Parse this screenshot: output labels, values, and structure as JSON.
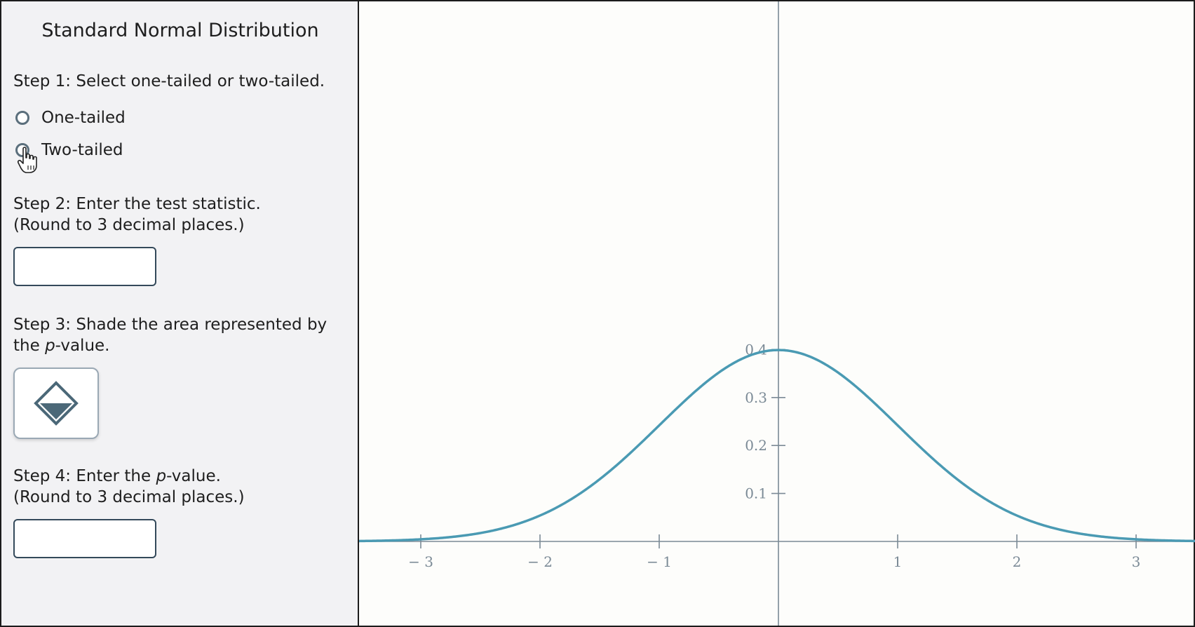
{
  "panel": {
    "title": "Standard Normal Distribution",
    "step1": "Step 1: Select one-tailed or two-tailed.",
    "radio_one": "One-tailed",
    "radio_two": "Two-tailed",
    "step2_line1": "Step 2: Enter the test statistic.",
    "step2_line2": "(Round to 3 decimal places.)",
    "test_statistic_value": "",
    "step3_line1": "Step 3: Shade the area represented by",
    "step3_prefix": "the ",
    "step3_italic": "p",
    "step3_suffix": "-value.",
    "step4_prefix": "Step 4: Enter the ",
    "step4_italic": "p",
    "step4_suffix": "-value.",
    "step4_line2": "(Round to 3 decimal places.)",
    "p_value_value": ""
  },
  "icons": {
    "shade_tool": "paint-bucket-icon",
    "cursor": "hand-pointer-cursor-icon"
  },
  "colors": {
    "curve": "#4a9ab3",
    "axis": "#7b8a96",
    "icon": "#4b6878"
  },
  "chart_data": {
    "type": "line",
    "function": "standard normal pdf",
    "xlim": [
      -3.5,
      3.5
    ],
    "ylim": [
      0,
      0.4
    ],
    "x_ticks": [
      -3,
      -2,
      -1,
      1,
      2,
      3
    ],
    "x_tick_labels": [
      "− 3",
      "− 2",
      "− 1",
      "1",
      "2",
      "3"
    ],
    "y_ticks": [
      0.1,
      0.2,
      0.3,
      0.4
    ],
    "y_tick_labels": [
      "0.1",
      "0.2",
      "0.3",
      "0.4"
    ],
    "title": "",
    "xlabel": "",
    "ylabel": ""
  }
}
